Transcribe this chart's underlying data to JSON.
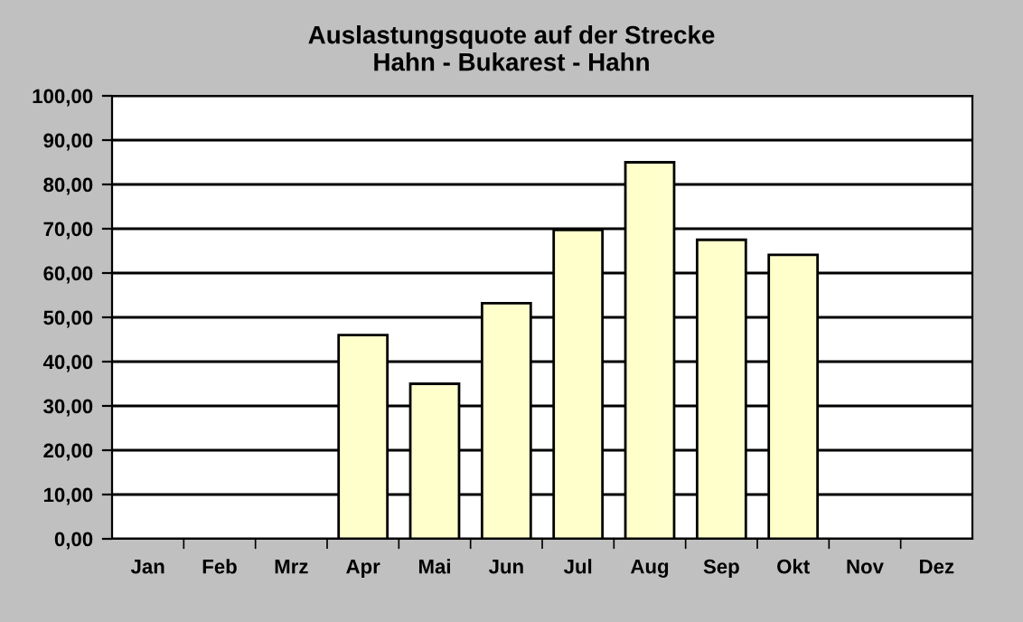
{
  "chart_data": {
    "type": "bar",
    "title": "Auslastungsquote auf der Strecke\nHahn - Bukarest - Hahn",
    "categories": [
      "Jan",
      "Feb",
      "Mrz",
      "Apr",
      "Mai",
      "Jun",
      "Jul",
      "Aug",
      "Sep",
      "Okt",
      "Nov",
      "Dez"
    ],
    "values": [
      null,
      null,
      null,
      46,
      35,
      53.2,
      69.7,
      85,
      67.5,
      64.1,
      null,
      null
    ],
    "color": "#ffffcc",
    "ylim": [
      0,
      100
    ],
    "yticks": [
      {
        "value": 0,
        "label": "0,00"
      },
      {
        "value": 10,
        "label": "10,00"
      },
      {
        "value": 20,
        "label": "20,00"
      },
      {
        "value": 30,
        "label": "30,00"
      },
      {
        "value": 40,
        "label": "40,00"
      },
      {
        "value": 50,
        "label": "50,00"
      },
      {
        "value": 60,
        "label": "60,00"
      },
      {
        "value": 70,
        "label": "70,00"
      },
      {
        "value": 80,
        "label": "80,00"
      },
      {
        "value": 90,
        "label": "90,00"
      },
      {
        "value": 100,
        "label": "100,00"
      }
    ],
    "grid": "y",
    "legend": false
  }
}
